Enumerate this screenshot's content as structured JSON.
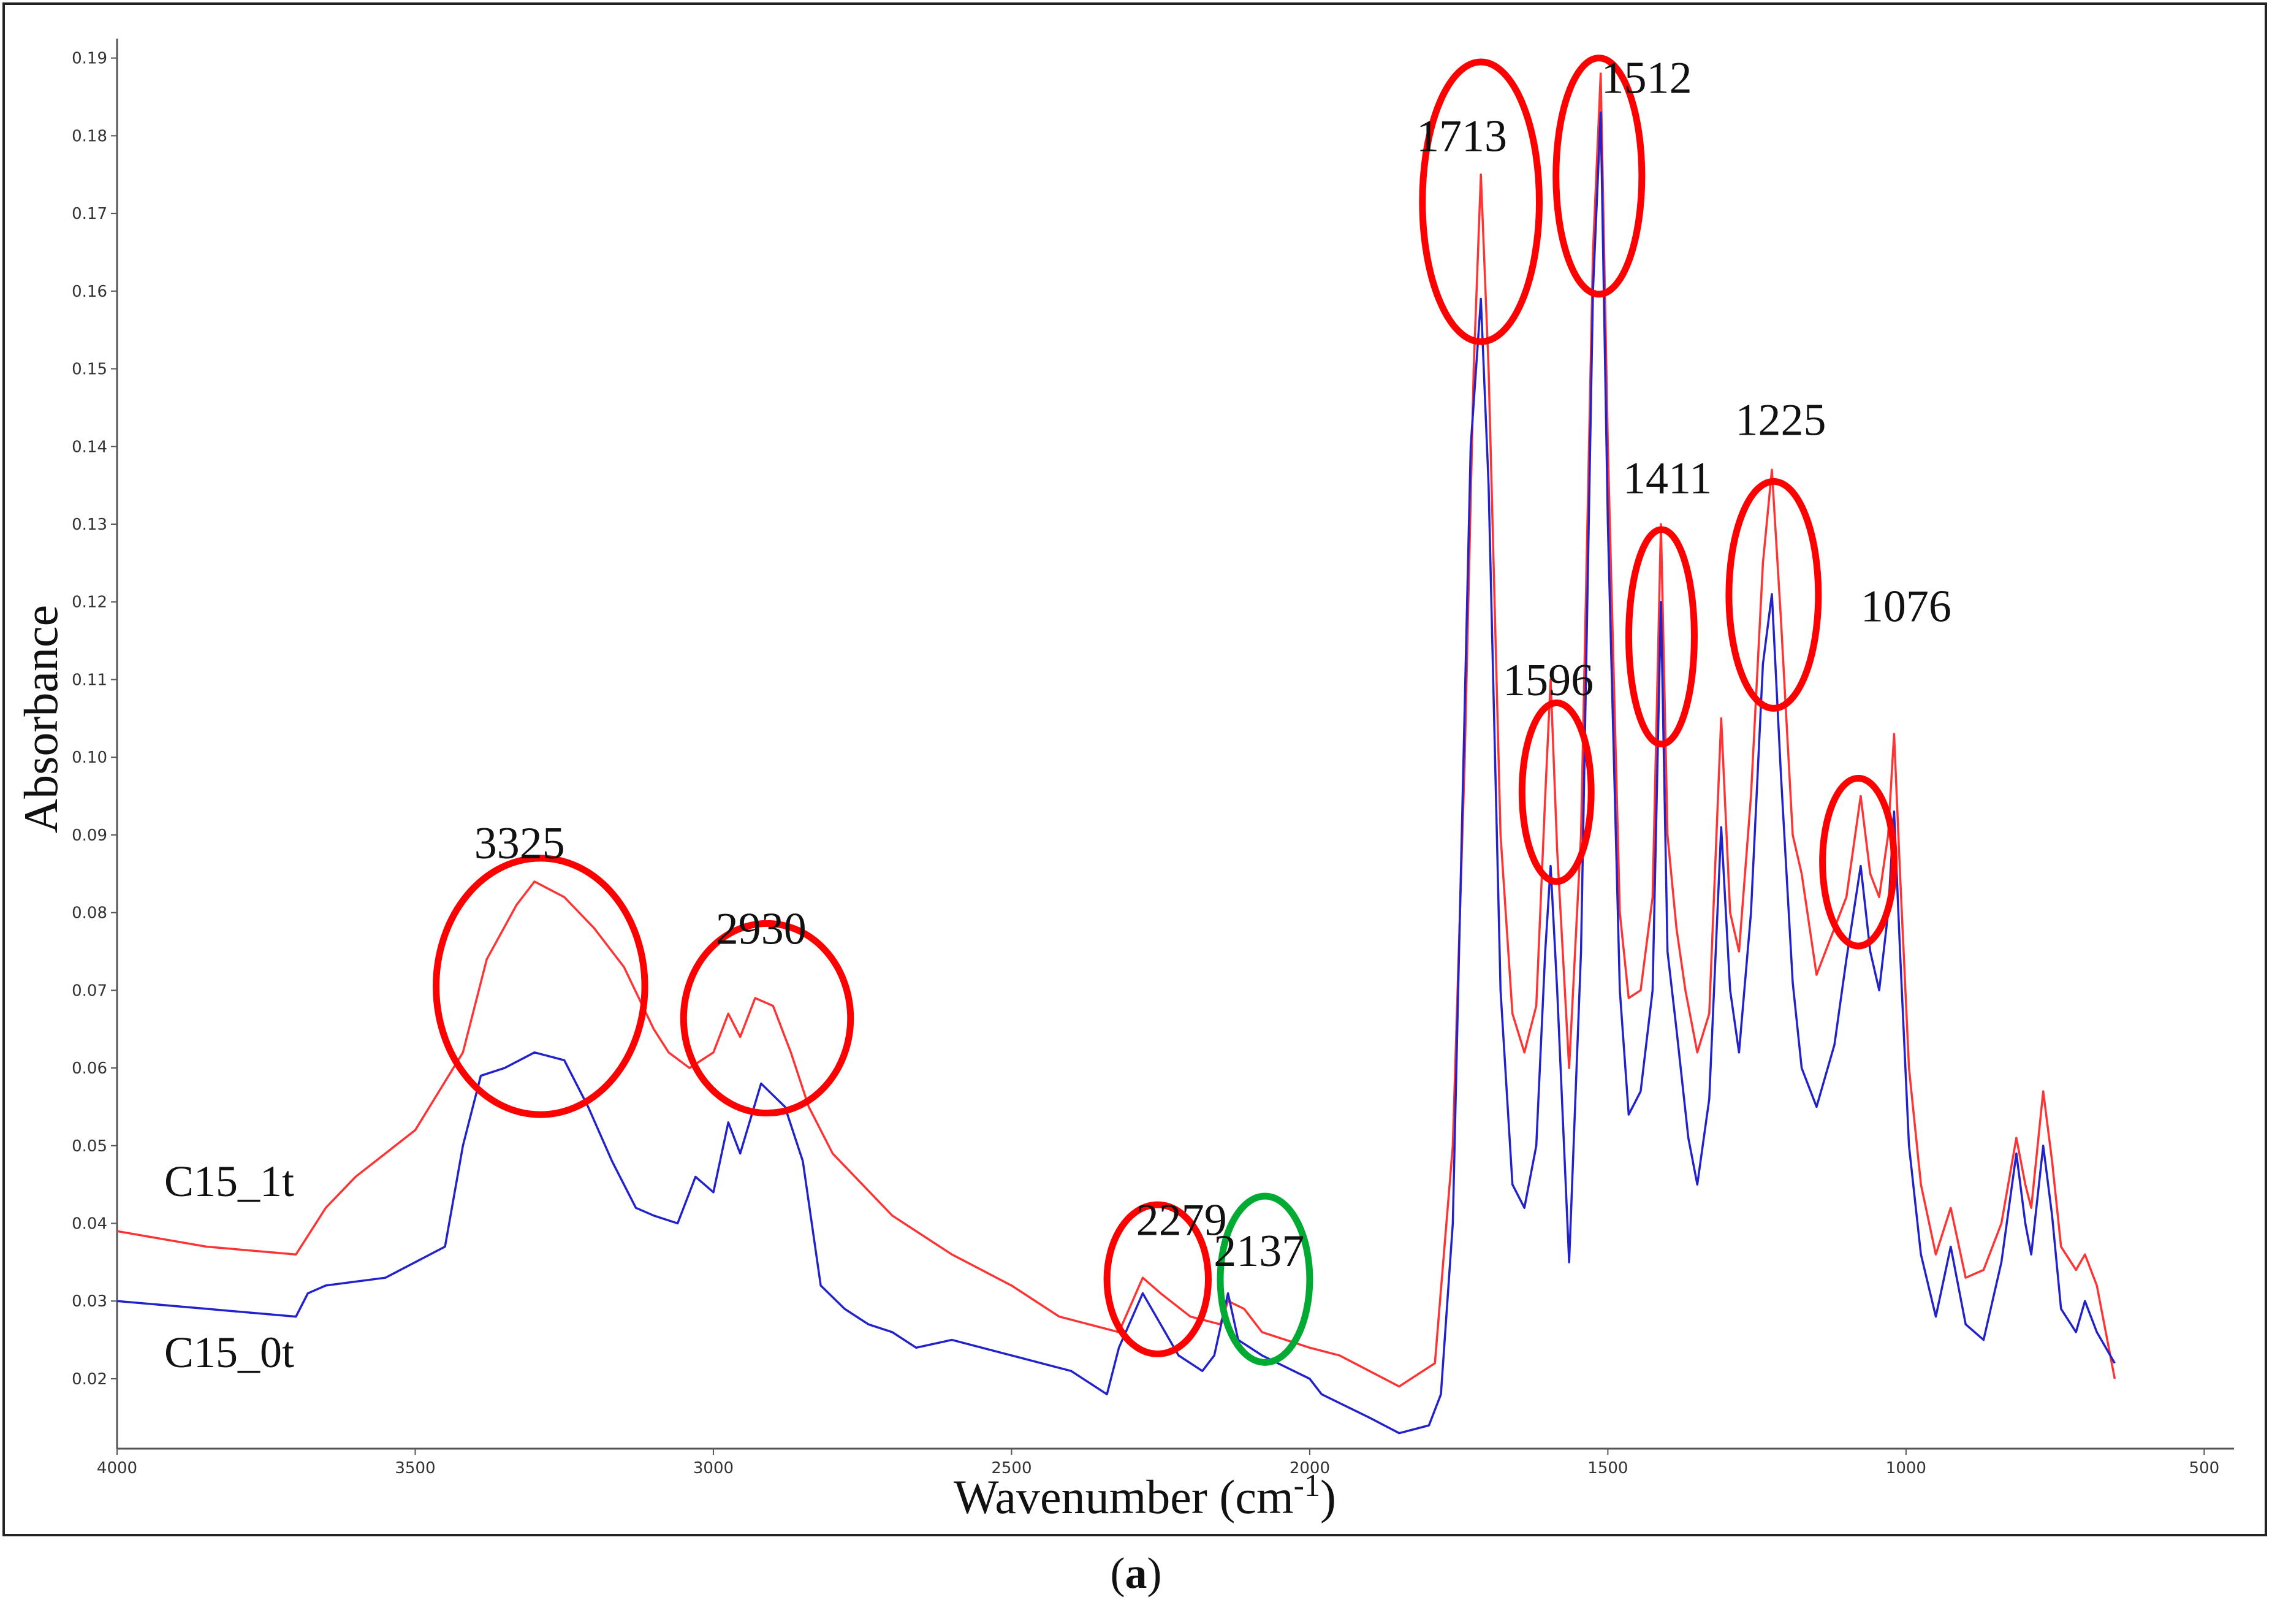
{
  "chart_data": {
    "type": "line",
    "title": "",
    "xlabel": "Wavenumber (cm",
    "xlabel_sup": "-1",
    "xlabel_close": ")",
    "ylabel": "Absorbance",
    "xlim": [
      4000,
      450
    ],
    "ylim": [
      0.011,
      0.1925
    ],
    "x_reversed": true,
    "grid": false,
    "x_ticks": [
      4000,
      3500,
      3000,
      2500,
      2000,
      1500,
      1000,
      500
    ],
    "y_ticks": [
      0.02,
      0.03,
      0.04,
      0.05,
      0.06,
      0.07,
      0.08,
      0.09,
      0.1,
      0.11,
      0.12,
      0.13,
      0.14,
      0.15,
      0.16,
      0.17,
      0.18,
      0.19
    ],
    "series": [
      {
        "name": "C15_1t",
        "color": "#ff3333",
        "points": [
          [
            4000,
            0.039
          ],
          [
            3850,
            0.037
          ],
          [
            3700,
            0.036
          ],
          [
            3650,
            0.042
          ],
          [
            3600,
            0.046
          ],
          [
            3500,
            0.052
          ],
          [
            3420,
            0.062
          ],
          [
            3380,
            0.074
          ],
          [
            3330,
            0.081
          ],
          [
            3300,
            0.084
          ],
          [
            3250,
            0.082
          ],
          [
            3200,
            0.078
          ],
          [
            3150,
            0.073
          ],
          [
            3100,
            0.065
          ],
          [
            3075,
            0.062
          ],
          [
            3040,
            0.06
          ],
          [
            3000,
            0.062
          ],
          [
            2975,
            0.067
          ],
          [
            2955,
            0.064
          ],
          [
            2930,
            0.069
          ],
          [
            2900,
            0.068
          ],
          [
            2870,
            0.062
          ],
          [
            2840,
            0.055
          ],
          [
            2800,
            0.049
          ],
          [
            2700,
            0.041
          ],
          [
            2640,
            0.038
          ],
          [
            2600,
            0.036
          ],
          [
            2500,
            0.032
          ],
          [
            2420,
            0.028
          ],
          [
            2320,
            0.026
          ],
          [
            2280,
            0.033
          ],
          [
            2250,
            0.031
          ],
          [
            2200,
            0.028
          ],
          [
            2150,
            0.027
          ],
          [
            2137,
            0.03
          ],
          [
            2110,
            0.029
          ],
          [
            2080,
            0.026
          ],
          [
            2000,
            0.024
          ],
          [
            1950,
            0.023
          ],
          [
            1850,
            0.019
          ],
          [
            1790,
            0.022
          ],
          [
            1760,
            0.05
          ],
          [
            1740,
            0.1
          ],
          [
            1725,
            0.15
          ],
          [
            1713,
            0.175
          ],
          [
            1700,
            0.15
          ],
          [
            1680,
            0.09
          ],
          [
            1660,
            0.067
          ],
          [
            1640,
            0.062
          ],
          [
            1620,
            0.068
          ],
          [
            1605,
            0.095
          ],
          [
            1596,
            0.11
          ],
          [
            1585,
            0.088
          ],
          [
            1565,
            0.06
          ],
          [
            1545,
            0.09
          ],
          [
            1525,
            0.165
          ],
          [
            1512,
            0.188
          ],
          [
            1500,
            0.14
          ],
          [
            1480,
            0.08
          ],
          [
            1465,
            0.069
          ],
          [
            1445,
            0.07
          ],
          [
            1425,
            0.082
          ],
          [
            1411,
            0.13
          ],
          [
            1400,
            0.09
          ],
          [
            1385,
            0.078
          ],
          [
            1370,
            0.07
          ],
          [
            1350,
            0.062
          ],
          [
            1330,
            0.067
          ],
          [
            1310,
            0.105
          ],
          [
            1295,
            0.08
          ],
          [
            1280,
            0.075
          ],
          [
            1260,
            0.095
          ],
          [
            1240,
            0.125
          ],
          [
            1225,
            0.137
          ],
          [
            1210,
            0.118
          ],
          [
            1190,
            0.09
          ],
          [
            1175,
            0.085
          ],
          [
            1150,
            0.072
          ],
          [
            1120,
            0.078
          ],
          [
            1100,
            0.082
          ],
          [
            1076,
            0.095
          ],
          [
            1060,
            0.085
          ],
          [
            1045,
            0.082
          ],
          [
            1030,
            0.09
          ],
          [
            1020,
            0.103
          ],
          [
            1010,
            0.085
          ],
          [
            995,
            0.06
          ],
          [
            975,
            0.045
          ],
          [
            950,
            0.036
          ],
          [
            925,
            0.042
          ],
          [
            900,
            0.033
          ],
          [
            870,
            0.034
          ],
          [
            840,
            0.04
          ],
          [
            815,
            0.051
          ],
          [
            800,
            0.045
          ],
          [
            790,
            0.042
          ],
          [
            770,
            0.057
          ],
          [
            755,
            0.048
          ],
          [
            740,
            0.037
          ],
          [
            715,
            0.034
          ],
          [
            700,
            0.036
          ],
          [
            680,
            0.032
          ],
          [
            650,
            0.02
          ]
        ]
      },
      {
        "name": "C15_0t",
        "color": "#2222cc",
        "points": [
          [
            4000,
            0.03
          ],
          [
            3850,
            0.029
          ],
          [
            3700,
            0.028
          ],
          [
            3680,
            0.031
          ],
          [
            3650,
            0.032
          ],
          [
            3550,
            0.033
          ],
          [
            3450,
            0.037
          ],
          [
            3420,
            0.05
          ],
          [
            3390,
            0.059
          ],
          [
            3350,
            0.06
          ],
          [
            3300,
            0.062
          ],
          [
            3250,
            0.061
          ],
          [
            3210,
            0.055
          ],
          [
            3170,
            0.048
          ],
          [
            3130,
            0.042
          ],
          [
            3100,
            0.041
          ],
          [
            3060,
            0.04
          ],
          [
            3030,
            0.046
          ],
          [
            3000,
            0.044
          ],
          [
            2975,
            0.053
          ],
          [
            2955,
            0.049
          ],
          [
            2920,
            0.058
          ],
          [
            2880,
            0.055
          ],
          [
            2850,
            0.048
          ],
          [
            2820,
            0.032
          ],
          [
            2780,
            0.029
          ],
          [
            2740,
            0.027
          ],
          [
            2700,
            0.026
          ],
          [
            2660,
            0.024
          ],
          [
            2600,
            0.025
          ],
          [
            2500,
            0.023
          ],
          [
            2400,
            0.021
          ],
          [
            2340,
            0.018
          ],
          [
            2320,
            0.024
          ],
          [
            2280,
            0.031
          ],
          [
            2250,
            0.027
          ],
          [
            2220,
            0.023
          ],
          [
            2180,
            0.021
          ],
          [
            2160,
            0.023
          ],
          [
            2137,
            0.031
          ],
          [
            2120,
            0.025
          ],
          [
            2080,
            0.023
          ],
          [
            2000,
            0.02
          ],
          [
            1980,
            0.018
          ],
          [
            1900,
            0.015
          ],
          [
            1850,
            0.013
          ],
          [
            1800,
            0.014
          ],
          [
            1780,
            0.018
          ],
          [
            1760,
            0.04
          ],
          [
            1745,
            0.09
          ],
          [
            1730,
            0.14
          ],
          [
            1713,
            0.159
          ],
          [
            1700,
            0.135
          ],
          [
            1680,
            0.07
          ],
          [
            1660,
            0.045
          ],
          [
            1640,
            0.042
          ],
          [
            1620,
            0.05
          ],
          [
            1605,
            0.075
          ],
          [
            1596,
            0.086
          ],
          [
            1585,
            0.07
          ],
          [
            1565,
            0.035
          ],
          [
            1545,
            0.075
          ],
          [
            1525,
            0.16
          ],
          [
            1512,
            0.183
          ],
          [
            1500,
            0.13
          ],
          [
            1480,
            0.07
          ],
          [
            1465,
            0.054
          ],
          [
            1445,
            0.057
          ],
          [
            1425,
            0.07
          ],
          [
            1411,
            0.12
          ],
          [
            1400,
            0.075
          ],
          [
            1385,
            0.065
          ],
          [
            1365,
            0.051
          ],
          [
            1350,
            0.045
          ],
          [
            1330,
            0.056
          ],
          [
            1310,
            0.091
          ],
          [
            1295,
            0.07
          ],
          [
            1280,
            0.062
          ],
          [
            1260,
            0.08
          ],
          [
            1240,
            0.112
          ],
          [
            1225,
            0.121
          ],
          [
            1210,
            0.098
          ],
          [
            1190,
            0.071
          ],
          [
            1175,
            0.06
          ],
          [
            1150,
            0.055
          ],
          [
            1120,
            0.063
          ],
          [
            1100,
            0.074
          ],
          [
            1076,
            0.086
          ],
          [
            1060,
            0.075
          ],
          [
            1045,
            0.07
          ],
          [
            1030,
            0.08
          ],
          [
            1020,
            0.093
          ],
          [
            1010,
            0.075
          ],
          [
            995,
            0.05
          ],
          [
            975,
            0.036
          ],
          [
            950,
            0.028
          ],
          [
            925,
            0.037
          ],
          [
            900,
            0.027
          ],
          [
            870,
            0.025
          ],
          [
            840,
            0.035
          ],
          [
            815,
            0.049
          ],
          [
            800,
            0.04
          ],
          [
            790,
            0.036
          ],
          [
            770,
            0.05
          ],
          [
            755,
            0.041
          ],
          [
            740,
            0.029
          ],
          [
            715,
            0.026
          ],
          [
            700,
            0.03
          ],
          [
            680,
            0.026
          ],
          [
            650,
            0.022
          ]
        ]
      }
    ],
    "annotations": [
      {
        "text": "3325",
        "x": 3325,
        "y": 0.087
      },
      {
        "text": "2930",
        "x": 2920,
        "y": 0.076
      },
      {
        "text": "2279",
        "x": 2215,
        "y": 0.0385
      },
      {
        "text": "2137",
        "x": 2085,
        "y": 0.0345
      },
      {
        "text": "1713",
        "x": 1745,
        "y": 0.178
      },
      {
        "text": "1512",
        "x": 1435,
        "y": 0.1855
      },
      {
        "text": "1596",
        "x": 1600,
        "y": 0.108
      },
      {
        "text": "1411",
        "x": 1400,
        "y": 0.134
      },
      {
        "text": "1225",
        "x": 1210,
        "y": 0.1415
      },
      {
        "text": "1076",
        "x": 1000,
        "y": 0.1175
      }
    ],
    "highlight_ellipses": [
      {
        "cx": 3290,
        "cy": 0.0705,
        "rx": 175,
        "ry": 0.0165,
        "color": "#ff0000"
      },
      {
        "cx": 2910,
        "cy": 0.0664,
        "rx": 140,
        "ry": 0.0122,
        "color": "#ff0000"
      },
      {
        "cx": 2255,
        "cy": 0.0328,
        "rx": 85,
        "ry": 0.0096,
        "color": "#ff0000"
      },
      {
        "cx": 2075,
        "cy": 0.0328,
        "rx": 75,
        "ry": 0.0107,
        "color": "#00aa33"
      },
      {
        "cx": 1713,
        "cy": 0.1715,
        "rx": 98,
        "ry": 0.018,
        "color": "#ff0000"
      },
      {
        "cx": 1515,
        "cy": 0.1748,
        "rx": 72,
        "ry": 0.0152,
        "color": "#ff0000"
      },
      {
        "cx": 1586,
        "cy": 0.0955,
        "rx": 58,
        "ry": 0.0115,
        "color": "#ff0000"
      },
      {
        "cx": 1410,
        "cy": 0.1155,
        "rx": 55,
        "ry": 0.0138,
        "color": "#ff0000"
      },
      {
        "cx": 1222,
        "cy": 0.1209,
        "rx": 75,
        "ry": 0.0146,
        "color": "#ff0000"
      },
      {
        "cx": 1080,
        "cy": 0.0865,
        "rx": 60,
        "ry": 0.0108,
        "color": "#ff0000"
      }
    ],
    "series_labels": [
      {
        "text": "C15_1t",
        "x": 4000,
        "y": 0.0435
      },
      {
        "text": "C15_0t",
        "x": 4000,
        "y": 0.0215
      }
    ]
  },
  "caption": {
    "letter": "a"
  }
}
